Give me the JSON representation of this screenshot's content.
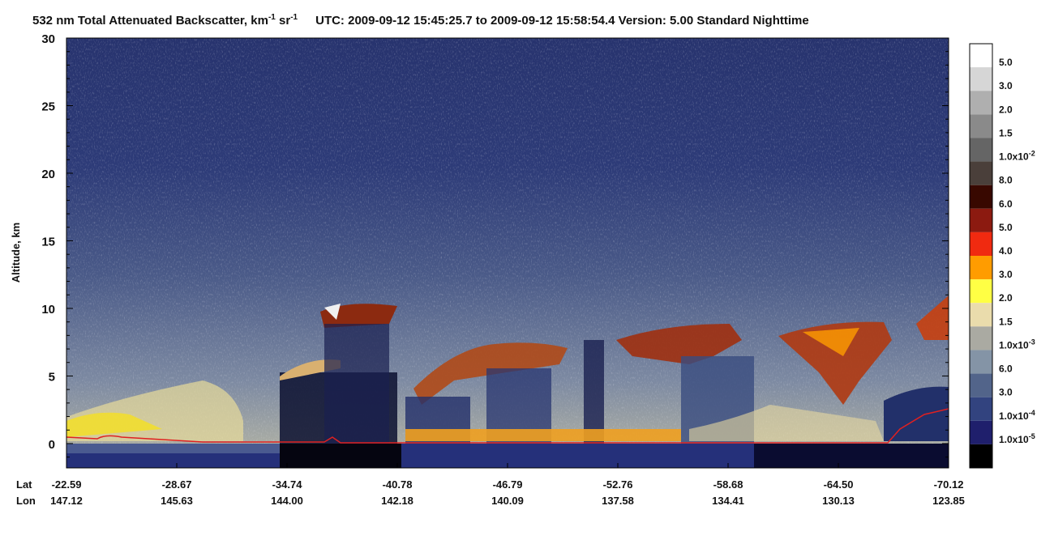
{
  "chart_data": {
    "type": "curtain",
    "title_parts": [
      "532 nm Total Attenuated Backscatter, km",
      "-1",
      " sr",
      "-1",
      "UTC:  2009-09-12 15:45:25.7  to  2009-09-12 15:58:54.4    Version: 5.00  Standard  Nighttime"
    ],
    "y_label": "Altitude, km",
    "ylim": [
      -1.8,
      30
    ],
    "yticks": [
      0,
      5,
      10,
      15,
      20,
      25,
      30
    ],
    "yminorticks": [
      -1,
      1,
      2,
      3,
      4,
      6,
      7,
      8,
      9,
      11,
      12,
      13,
      14,
      16,
      17,
      18,
      19,
      21,
      22,
      23,
      24,
      26,
      27,
      28,
      29
    ],
    "x_row_names": [
      "Lat",
      "Lon"
    ],
    "lat": [
      "-22.59",
      "-28.67",
      "-34.74",
      "-40.78",
      "-46.79",
      "-52.76",
      "-58.68",
      "-64.50",
      "-70.12"
    ],
    "lon": [
      "147.12",
      "145.63",
      "144.00",
      "142.18",
      "140.09",
      "137.58",
      "134.41",
      "130.13",
      "123.85"
    ],
    "colorbar": {
      "colors": [
        "#ffffff",
        "#d6d6d6",
        "#afafaf",
        "#8a8a8a",
        "#656565",
        "#4a3f3a",
        "#380800",
        "#8c1a10",
        "#f02a10",
        "#ff9c00",
        "#ffff44",
        "#eadcac",
        "#aaaaa2",
        "#8494a6",
        "#52648a",
        "#32437f",
        "#1f1f6c",
        "#000000"
      ],
      "labels": [
        {
          "base": "5.0"
        },
        {
          "base": "3.0"
        },
        {
          "base": "2.0"
        },
        {
          "base": "1.5"
        },
        {
          "base": "1.0x10",
          "exp": "-2"
        },
        {
          "base": "8.0"
        },
        {
          "base": "6.0"
        },
        {
          "base": "5.0"
        },
        {
          "base": "4.0"
        },
        {
          "base": "3.0"
        },
        {
          "base": "2.0"
        },
        {
          "base": "1.5"
        },
        {
          "base": "1.0x10",
          "exp": "-3"
        },
        {
          "base": "6.0"
        },
        {
          "base": "3.0"
        },
        {
          "base": "1.0x10",
          "exp": "-4"
        },
        {
          "base": "1.0x10",
          "exp": "-5"
        }
      ]
    }
  }
}
